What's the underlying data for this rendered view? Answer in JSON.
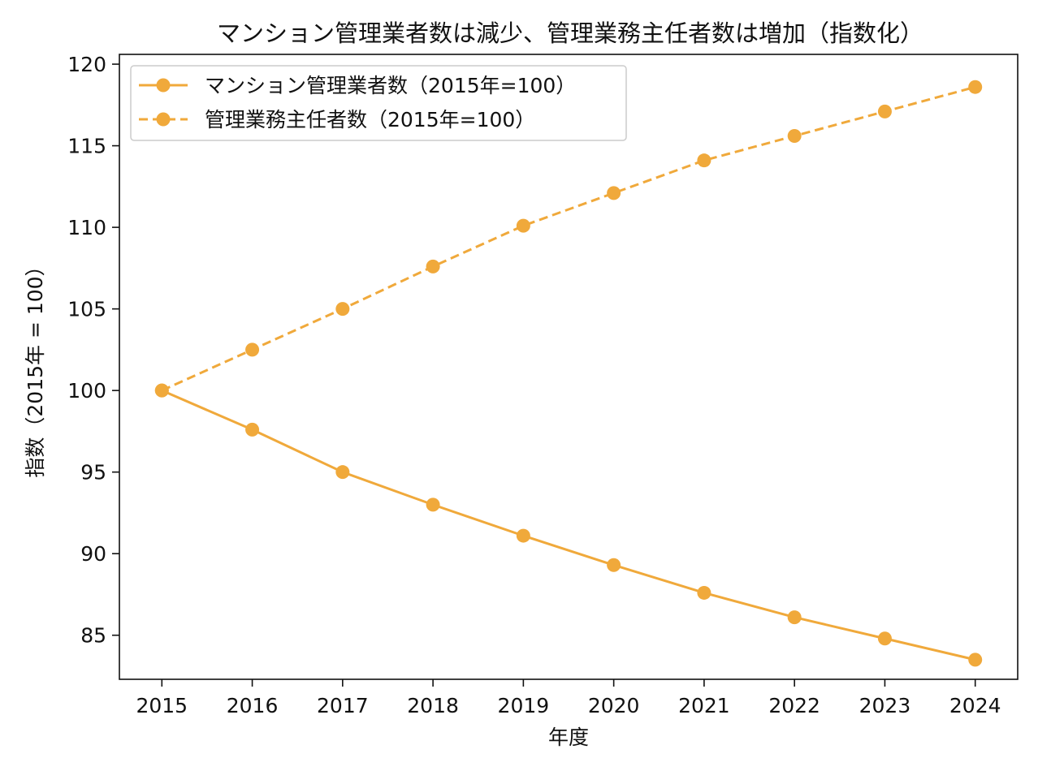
{
  "chart_data": {
    "type": "line",
    "title": "マンション管理業者数は減少、管理業務主任者数は増加（指数化）",
    "xlabel": "年度",
    "ylabel": "指数（2015年 = 100）",
    "x": [
      2015,
      2016,
      2017,
      2018,
      2019,
      2020,
      2021,
      2022,
      2023,
      2024
    ],
    "x_tick_labels": [
      "2015",
      "2016",
      "2017",
      "2018",
      "2019",
      "2020",
      "2021",
      "2022",
      "2023",
      "2024"
    ],
    "xlim": [
      2014.53,
      2024.47
    ],
    "ylim": [
      82.3,
      120.6
    ],
    "yticks": [
      85,
      90,
      95,
      100,
      105,
      110,
      115,
      120
    ],
    "y_tick_labels": [
      "85",
      "90",
      "95",
      "100",
      "105",
      "110",
      "115",
      "120"
    ],
    "grid": false,
    "legend_position": "top-left",
    "series": [
      {
        "name": "マンション管理業者数（2015年=100）",
        "line_style": "solid",
        "marker": "circle",
        "color": "#f0a93b",
        "values": [
          100.0,
          97.6,
          95.0,
          93.0,
          91.1,
          89.3,
          87.6,
          86.1,
          84.8,
          83.5
        ]
      },
      {
        "name": "管理業務主任者数（2015年=100）",
        "line_style": "dashed",
        "marker": "circle",
        "color": "#f0a93b",
        "values": [
          100.0,
          102.5,
          105.0,
          107.6,
          110.1,
          112.1,
          114.1,
          115.6,
          117.1,
          118.6
        ]
      }
    ]
  }
}
